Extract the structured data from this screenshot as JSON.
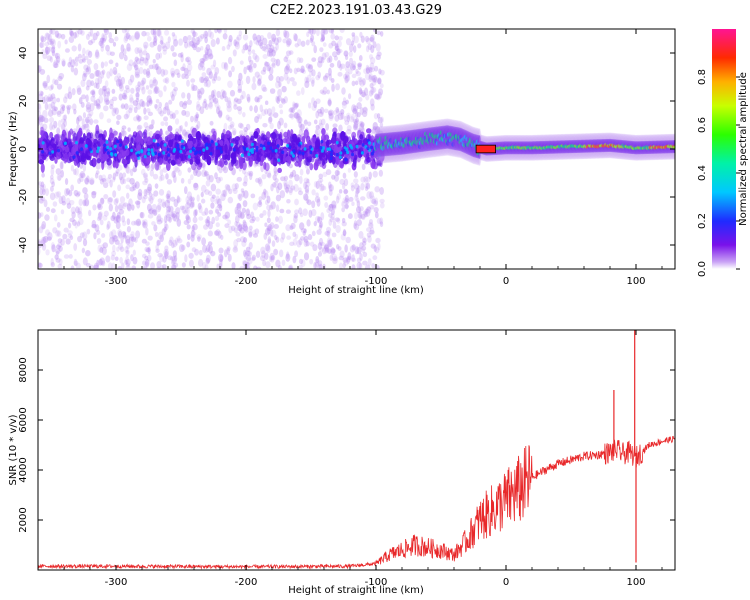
{
  "title": "C2E2.2023.191.03.43.G29",
  "colors": {
    "snr_line": "#e8282a",
    "axis": "#000000"
  },
  "chart_data": [
    {
      "type": "heatmap",
      "xlabel": "Height of straight line (km)",
      "ylabel": "Frequency (Hz)",
      "xlim": [
        -360,
        130
      ],
      "ylim": [
        -50,
        50
      ],
      "x_ticks": [
        -300,
        -200,
        -100,
        0,
        100
      ],
      "y_ticks": [
        -40,
        -20,
        0,
        20,
        40
      ],
      "x_tick_labels": [
        "-300",
        "-200",
        "-100",
        "0",
        "100"
      ],
      "y_tick_labels": [
        "-40",
        "-20",
        "0",
        "20",
        "40"
      ],
      "colorscale": "rainbow (purple to magenta)",
      "colorbar": {
        "label": "Normalized spectral amplitude",
        "range": [
          0.0,
          1.0
        ],
        "ticks": [
          0.0,
          0.2,
          0.4,
          0.6,
          0.8
        ],
        "tick_labels": [
          "0.0",
          "0.2",
          "0.4",
          "0.6",
          "0.8"
        ]
      },
      "features": {
        "noise_region_x": [
          -360,
          -95
        ],
        "noise_band_y": [
          -10,
          10
        ],
        "signal_track_x": [
          -100,
          130
        ],
        "signal_track_freq_hz": [
          [
            -100,
            1.5
          ],
          [
            -80,
            2.5
          ],
          [
            -60,
            4.0
          ],
          [
            -45,
            5.0
          ],
          [
            -35,
            4.0
          ],
          [
            -25,
            1.5
          ],
          [
            -15,
            0.0
          ],
          [
            0,
            0.5
          ],
          [
            20,
            0.5
          ],
          [
            50,
            1.0
          ],
          [
            80,
            1.5
          ],
          [
            90,
            1.0
          ],
          [
            100,
            0.5
          ],
          [
            130,
            1.0
          ]
        ]
      }
    },
    {
      "type": "line",
      "xlabel": "Height of straight line (km)",
      "ylabel": "SNR (10 * v/v)",
      "xlim": [
        -360,
        130
      ],
      "ylim": [
        0,
        9600
      ],
      "x_ticks": [
        -300,
        -200,
        -100,
        0,
        100
      ],
      "y_ticks": [
        2000,
        4000,
        6000,
        8000
      ],
      "x_tick_labels": [
        "-300",
        "-200",
        "-100",
        "0",
        "100"
      ],
      "y_tick_labels": [
        "2000",
        "4000",
        "6000",
        "8000"
      ],
      "series": [
        {
          "x": [
            -360,
            -300,
            -200,
            -120,
            -100,
            -90,
            -80,
            -70,
            -60,
            -50,
            -40,
            -30,
            -20,
            -10,
            0,
            10,
            20,
            30,
            40,
            50,
            60,
            70,
            80,
            85,
            90,
            95,
            100,
            110,
            120,
            130
          ],
          "y": [
            150,
            150,
            130,
            150,
            250,
            600,
            800,
            1000,
            900,
            800,
            600,
            1200,
            2000,
            2400,
            2800,
            3200,
            3700,
            4000,
            4250,
            4400,
            4550,
            4600,
            4700,
            4800,
            4650,
            4700,
            4500,
            5000,
            5150,
            5250
          ]
        }
      ],
      "spikes": [
        {
          "x": 83,
          "y": 7200
        },
        {
          "x": 99,
          "y": 9600
        },
        {
          "x": 100,
          "y": 300
        }
      ]
    }
  ]
}
